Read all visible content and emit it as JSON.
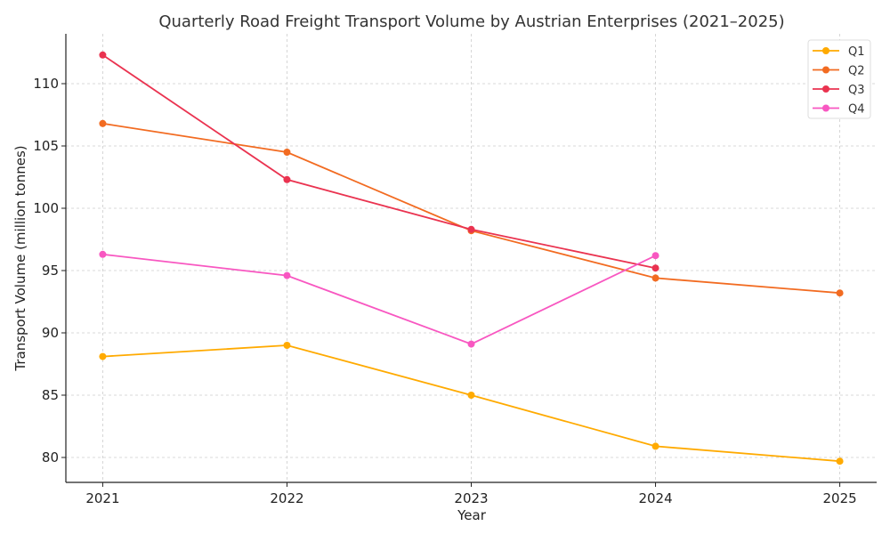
{
  "chart_data": {
    "type": "line",
    "title": "Quarterly Road Freight Transport Volume by Austrian Enterprises (2021–2025)",
    "xlabel": "Year",
    "ylabel": "Transport Volume (million tonnes)",
    "x": [
      2021,
      2022,
      2023,
      2024,
      2025
    ],
    "x_tick_labels": [
      "2021",
      "2022",
      "2023",
      "2024",
      "2025"
    ],
    "xlim": [
      2020.8,
      2025.2
    ],
    "ylim": [
      78,
      114
    ],
    "y_ticks": [
      80,
      85,
      90,
      95,
      100,
      105,
      110
    ],
    "grid": true,
    "legend_position": "top-right",
    "series": [
      {
        "name": "Q1",
        "color": "#ffaa00",
        "values": [
          88.1,
          89.0,
          85.0,
          80.9,
          79.7
        ]
      },
      {
        "name": "Q2",
        "color": "#f26b21",
        "values": [
          106.8,
          104.5,
          98.2,
          94.4,
          93.2
        ]
      },
      {
        "name": "Q3",
        "color": "#ea3350",
        "values": [
          112.3,
          102.3,
          98.3,
          95.2,
          null
        ]
      },
      {
        "name": "Q4",
        "color": "#f857c1",
        "values": [
          96.3,
          94.6,
          89.1,
          96.2,
          null
        ]
      }
    ]
  }
}
